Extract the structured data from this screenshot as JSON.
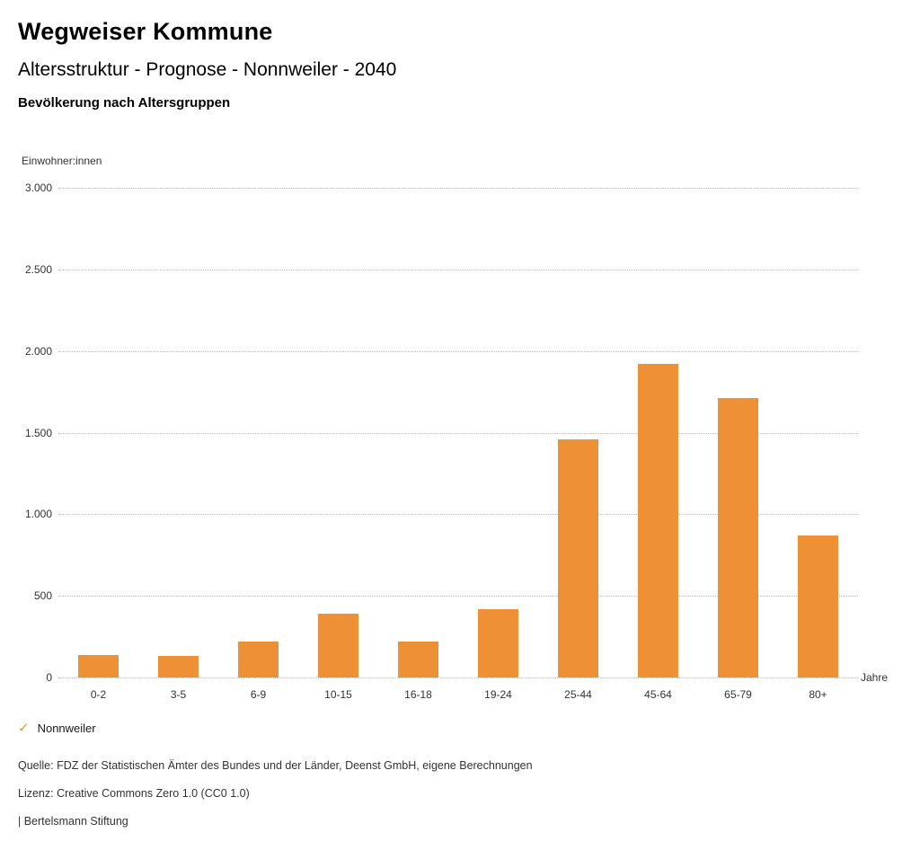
{
  "header": {
    "title": "Wegweiser Kommune",
    "subtitle": "Altersstruktur - Prognose - Nonnweiler - 2040",
    "section_title": "Bevölkerung nach Altersgruppen"
  },
  "chart_data": {
    "type": "bar",
    "title": "Bevölkerung nach Altersgruppen",
    "ylabel": "Einwohner:innen",
    "xlabel": "Jahre",
    "categories": [
      "0-2",
      "3-5",
      "6-9",
      "10-15",
      "16-18",
      "19-24",
      "25-44",
      "45-64",
      "65-79",
      "80+"
    ],
    "series": [
      {
        "name": "Nonnweiler",
        "values": [
          140,
          130,
          220,
          390,
          220,
          420,
          1460,
          1920,
          1710,
          870
        ]
      }
    ],
    "ylim": [
      0,
      3000
    ],
    "ytick_step": 500,
    "ytick_labels": [
      "0",
      "500",
      "1.000",
      "1.500",
      "2.000",
      "2.500",
      "3.000"
    ],
    "grid": true,
    "bar_color": "#ED9036",
    "legend_position": "bottom-left"
  },
  "legend": {
    "check_icon": "✓",
    "label": "Nonnweiler",
    "color": "#ED9036"
  },
  "footer": {
    "source": "Quelle: FDZ der Statistischen Ämter des Bundes und der Länder, Deenst GmbH, eigene Berechnungen",
    "license": "Lizenz: Creative Commons Zero 1.0 (CC0 1.0)",
    "attribution": "| Bertelsmann Stiftung"
  }
}
